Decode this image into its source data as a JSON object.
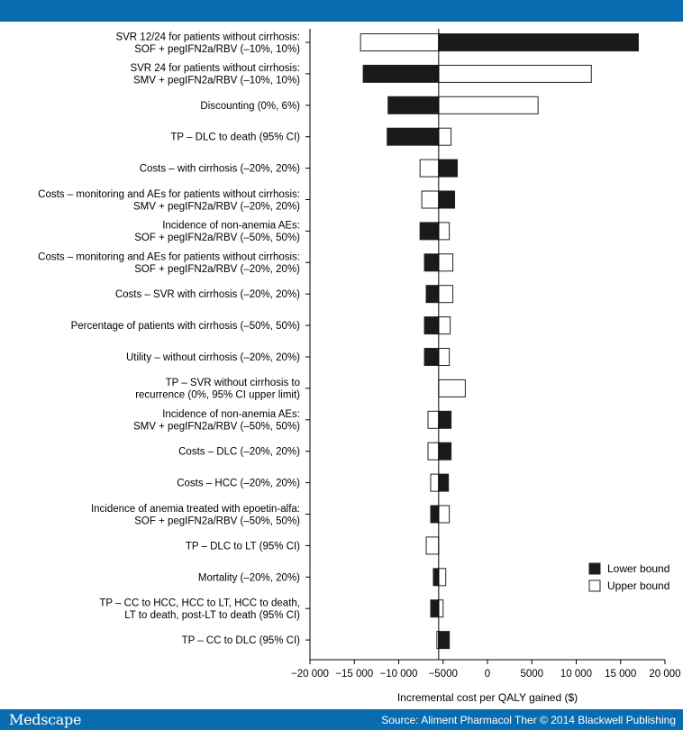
{
  "header": {
    "color": "#0a6cb0"
  },
  "footer": {
    "brand": "Medscape",
    "source": "Source: Aliment Pharmacol Ther © 2014 Blackwell Publishing",
    "color": "#0a6cb0"
  },
  "chart_data": {
    "type": "bar",
    "orientation": "horizontal",
    "style": "tornado",
    "base_value": -5500,
    "xlabel": "Incremental cost per QALY gained ($)",
    "xlim": [
      -20000,
      20000
    ],
    "xticks": [
      -20000,
      -15000,
      -10000,
      -5000,
      0,
      5000,
      10000,
      15000,
      20000
    ],
    "xtick_labels": [
      "−20 000",
      "−15 000",
      "−10 000",
      "−5000",
      "0",
      "5000",
      "10 000",
      "15 000",
      "20 000"
    ],
    "legend": {
      "position": "bottom-right",
      "entries": [
        {
          "name": "Lower bound",
          "fill": "#1a1a1a"
        },
        {
          "name": "Upper bound",
          "fill": "#ffffff"
        }
      ]
    },
    "categories": [
      [
        "SVR 12/24 for patients without cirrhosis:",
        "SOF + pegIFN2a/RBV (–10%, 10%)"
      ],
      [
        "SVR 24 for patients without cirrhosis:",
        "SMV + pegIFN2a/RBV (–10%, 10%)"
      ],
      [
        "Discounting (0%, 6%)"
      ],
      [
        "TP – DLC to death (95% CI)"
      ],
      [
        "Costs – with cirrhosis (–20%, 20%)"
      ],
      [
        "Costs – monitoring and AEs for patients without cirrhosis:",
        "SMV + pegIFN2a/RBV (–20%, 20%)"
      ],
      [
        "Incidence of non-anemia AEs:",
        "SOF + pegIFN2a/RBV (–50%, 50%)"
      ],
      [
        "Costs – monitoring and AEs for patients without cirrhosis:",
        "SOF + pegIFN2a/RBV (–20%, 20%)"
      ],
      [
        "Costs – SVR with cirrhosis (–20%, 20%)"
      ],
      [
        "Percentage of patients with cirrhosis (–50%, 50%)"
      ],
      [
        "Utility – without cirrhosis (–20%, 20%)"
      ],
      [
        "TP – SVR without cirrhosis to",
        "recurrence (0%, 95% CI upper limit)"
      ],
      [
        "Incidence of non-anemia AEs:",
        "SMV + pegIFN2a/RBV (–50%, 50%)"
      ],
      [
        "Costs – DLC (–20%, 20%)"
      ],
      [
        "Costs – HCC (–20%, 20%)"
      ],
      [
        "Incidence of anemia treated with epoetin-alfa:",
        "SOF + pegIFN2a/RBV (–50%, 50%)"
      ],
      [
        "TP – DLC to LT (95% CI)"
      ],
      [
        "Mortality (–20%, 20%)"
      ],
      [
        "TP – CC to HCC, HCC to LT, HCC to death,",
        "LT to death, post-LT to death (95% CI)"
      ],
      [
        "TP – CC to DLC (95% CI)"
      ]
    ],
    "series": [
      {
        "name": "Lower bound",
        "values": [
          17000,
          -14000,
          -11200,
          -11300,
          -3400,
          -3700,
          -7600,
          -7100,
          -6900,
          -7100,
          -7100,
          null,
          -4100,
          -4100,
          -4400,
          -6400,
          null,
          -6100,
          -6400,
          -4300
        ]
      },
      {
        "name": "Upper bound",
        "values": [
          -14300,
          11700,
          5700,
          -4100,
          -7600,
          -7400,
          -4300,
          -3900,
          -3900,
          -4200,
          -4300,
          -2500,
          -6700,
          -6700,
          -6400,
          -4300,
          -6900,
          -4700,
          -5000,
          -5700
        ]
      }
    ]
  }
}
